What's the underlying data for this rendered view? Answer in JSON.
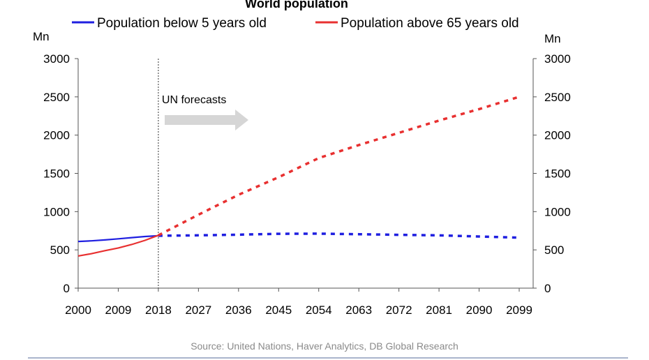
{
  "chart_data": {
    "type": "line",
    "title": "World population",
    "y_unit_left": "Mn",
    "y_unit_right": "Mn",
    "ylim": [
      0,
      3000
    ],
    "yticks": [
      0,
      500,
      1000,
      1500,
      2000,
      2500,
      3000
    ],
    "xlim": [
      2000,
      2099
    ],
    "xticks": [
      2000,
      2009,
      2018,
      2027,
      2036,
      2045,
      2054,
      2063,
      2072,
      2081,
      2090,
      2099
    ],
    "forecast_start": 2018,
    "annotation": "UN forecasts",
    "legend_position": "top",
    "series": [
      {
        "name": "Population below 5 years old",
        "color": "#1f1fe0",
        "x": [
          2000,
          2003,
          2006,
          2009,
          2012,
          2015,
          2018,
          2025,
          2035,
          2045,
          2054,
          2063,
          2072,
          2081,
          2090,
          2099
        ],
        "y": [
          610,
          618,
          630,
          645,
          660,
          675,
          685,
          688,
          698,
          710,
          712,
          705,
          697,
          690,
          675,
          660
        ]
      },
      {
        "name": "Population above 65 years old",
        "color": "#e83030",
        "x": [
          2000,
          2003,
          2006,
          2009,
          2012,
          2015,
          2018,
          2027,
          2036,
          2045,
          2054,
          2063,
          2072,
          2081,
          2090,
          2099
        ],
        "y": [
          420,
          450,
          490,
          525,
          570,
          625,
          690,
          960,
          1220,
          1450,
          1700,
          1870,
          2030,
          2190,
          2340,
          2500
        ]
      }
    ]
  },
  "source": "Source: United Nations, Haver Analytics, DB Global Research"
}
